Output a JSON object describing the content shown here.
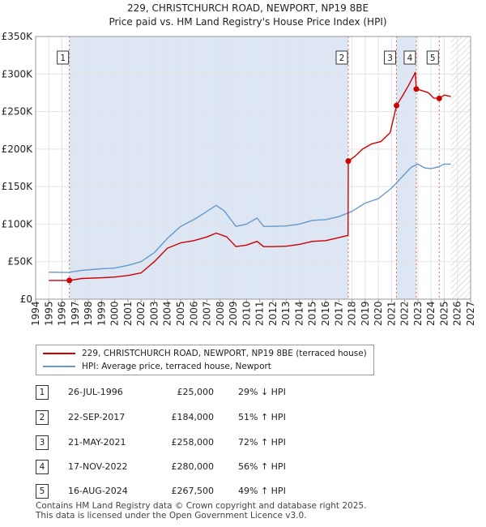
{
  "chart_data": {
    "type": "line",
    "title": "229, CHRISTCHURCH ROAD, NEWPORT, NP19 8BE",
    "subtitle": "Price paid vs. HM Land Registry's House Price Index (HPI)",
    "xlabel": "",
    "ylabel": "",
    "xlim": [
      1994,
      2027
    ],
    "ylim": [
      0,
      350000
    ],
    "x_ticks": [
      "1994",
      "1995",
      "1996",
      "1997",
      "1998",
      "1999",
      "2000",
      "2001",
      "2002",
      "2003",
      "2004",
      "2005",
      "2006",
      "2007",
      "2008",
      "2009",
      "2010",
      "2011",
      "2012",
      "2013",
      "2014",
      "2015",
      "2016",
      "2017",
      "2018",
      "2019",
      "2020",
      "2021",
      "2022",
      "2023",
      "2024",
      "2025",
      "2026",
      "2027"
    ],
    "y_ticks": [
      {
        "value": 0,
        "label": "£0"
      },
      {
        "value": 50000,
        "label": "£50K"
      },
      {
        "value": 100000,
        "label": "£100K"
      },
      {
        "value": 150000,
        "label": "£150K"
      },
      {
        "value": 200000,
        "label": "£200K"
      },
      {
        "value": 250000,
        "label": "£250K"
      },
      {
        "value": 300000,
        "label": "£300K"
      },
      {
        "value": 350000,
        "label": "£350K"
      }
    ],
    "data_start": 1995,
    "data_end": 2025.5,
    "series": [
      {
        "name": "229, CHRISTCHURCH ROAD, NEWPORT, NP19 8BE (terraced house)",
        "color": "#cc0000",
        "points": [
          [
            1995,
            25000
          ],
          [
            1996.56,
            25000
          ],
          [
            1997.5,
            27500
          ],
          [
            1999,
            28500
          ],
          [
            2000,
            29500
          ],
          [
            2001,
            31500
          ],
          [
            2002,
            35000
          ],
          [
            2003,
            50000
          ],
          [
            2004,
            68000
          ],
          [
            2005,
            75000
          ],
          [
            2006,
            78000
          ],
          [
            2007,
            83000
          ],
          [
            2007.7,
            88000
          ],
          [
            2008.5,
            83000
          ],
          [
            2009.2,
            70000
          ],
          [
            2010,
            72000
          ],
          [
            2010.8,
            77000
          ],
          [
            2011.3,
            70000
          ],
          [
            2012,
            70000
          ],
          [
            2013,
            70500
          ],
          [
            2014,
            73000
          ],
          [
            2015,
            77000
          ],
          [
            2016,
            78000
          ],
          [
            2017,
            82000
          ],
          [
            2017.7,
            85000
          ],
          [
            2017.72,
            184000
          ],
          [
            2018.2,
            190000
          ],
          [
            2018.8,
            200000
          ],
          [
            2019.5,
            207000
          ],
          [
            2020.2,
            210000
          ],
          [
            2020.9,
            222000
          ],
          [
            2021.38,
            258000
          ],
          [
            2021.8,
            270000
          ],
          [
            2022.3,
            285000
          ],
          [
            2022.8,
            302000
          ],
          [
            2022.88,
            280000
          ],
          [
            2023.3,
            278000
          ],
          [
            2023.8,
            275000
          ],
          [
            2024.2,
            268000
          ],
          [
            2024.62,
            267500
          ],
          [
            2025,
            272000
          ],
          [
            2025.5,
            270000
          ]
        ]
      },
      {
        "name": "HPI: Average price, terraced house, Newport",
        "color": "#6699cc",
        "points": [
          [
            1995,
            36000
          ],
          [
            1996.5,
            35500
          ],
          [
            1997.5,
            38500
          ],
          [
            1999,
            40500
          ],
          [
            2000,
            41500
          ],
          [
            2001,
            45000
          ],
          [
            2002,
            50000
          ],
          [
            2003,
            62000
          ],
          [
            2004,
            81000
          ],
          [
            2005,
            97000
          ],
          [
            2006,
            106000
          ],
          [
            2007,
            117000
          ],
          [
            2007.7,
            125000
          ],
          [
            2008.3,
            118000
          ],
          [
            2009.2,
            97000
          ],
          [
            2010,
            100000
          ],
          [
            2010.8,
            108000
          ],
          [
            2011.3,
            97000
          ],
          [
            2012,
            97000
          ],
          [
            2013,
            97500
          ],
          [
            2014,
            100000
          ],
          [
            2015,
            105000
          ],
          [
            2016,
            106000
          ],
          [
            2017,
            110000
          ],
          [
            2018,
            117000
          ],
          [
            2019,
            128000
          ],
          [
            2020,
            134000
          ],
          [
            2021,
            148000
          ],
          [
            2021.8,
            163000
          ],
          [
            2022.5,
            176000
          ],
          [
            2023,
            180000
          ],
          [
            2023.5,
            175000
          ],
          [
            2024,
            174000
          ],
          [
            2024.5,
            176000
          ],
          [
            2025,
            180000
          ],
          [
            2025.5,
            180000
          ]
        ]
      }
    ],
    "sales": [
      {
        "n": "1",
        "date": "26-JUL-1996",
        "price": "£25,000",
        "hpi": "29% ↓ HPI",
        "x": 1996.56,
        "y": 25000
      },
      {
        "n": "2",
        "date": "22-SEP-2017",
        "price": "£184,000",
        "hpi": "51% ↑ HPI",
        "x": 2017.72,
        "y": 184000
      },
      {
        "n": "3",
        "date": "21-MAY-2021",
        "price": "£258,000",
        "hpi": "72% ↑ HPI",
        "x": 2021.38,
        "y": 258000
      },
      {
        "n": "4",
        "date": "17-NOV-2022",
        "price": "£280,000",
        "hpi": "56% ↑ HPI",
        "x": 2022.88,
        "y": 280000
      },
      {
        "n": "5",
        "date": "16-AUG-2024",
        "price": "£267,500",
        "hpi": "49% ↑ HPI",
        "x": 2024.62,
        "y": 267500
      }
    ]
  },
  "legend": {
    "property_label": "229, CHRISTCHURCH ROAD, NEWPORT, NP19 8BE (terraced house)",
    "hpi_label": "HPI: Average price, terraced house, Newport"
  },
  "footer": {
    "line1": "Contains HM Land Registry data © Crown copyright and database right 2025.",
    "line2": "This data is licensed under the Open Government Licence v3.0."
  },
  "colors": {
    "property": "#cc0000",
    "hpi": "#6699cc",
    "band": "#dde6f4",
    "hatch": "#c9c9c9"
  }
}
